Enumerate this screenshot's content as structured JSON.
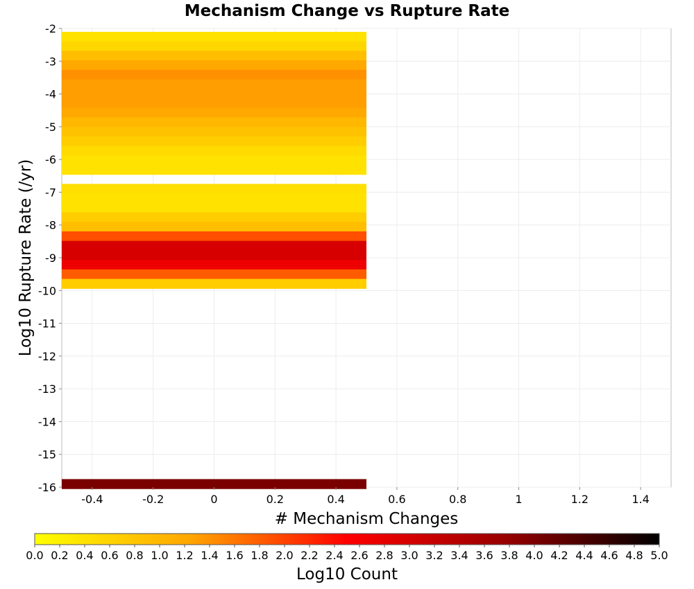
{
  "chart_data": {
    "type": "heatmap",
    "title": "Mechanism Change vs Rupture Rate",
    "xlabel": "# Mechanism Changes",
    "ylabel": "Log10 Rupture Rate (/yr)",
    "colorbar_label": "Log10 Count",
    "xlim": [
      -0.5,
      1.5
    ],
    "ylim": [
      -16,
      -2
    ],
    "x_ticks": [
      -0.4,
      -0.2,
      0,
      0.2,
      0.4,
      0.6,
      0.8,
      1,
      1.2,
      1.4
    ],
    "x_tick_labels": [
      "-0.4",
      "-0.2",
      "0",
      "0.2",
      "0.4",
      "0.6",
      "0.8",
      "1",
      "1.2",
      "1.4"
    ],
    "y_ticks": [
      -2,
      -3,
      -4,
      -5,
      -6,
      -7,
      -8,
      -9,
      -10,
      -11,
      -12,
      -13,
      -14,
      -15,
      -16
    ],
    "y_tick_labels": [
      "-2",
      "-3",
      "-4",
      "-5",
      "-6",
      "-7",
      "-8",
      "-9",
      "-10",
      "-11",
      "-12",
      "-13",
      "-14",
      "-15",
      "-16"
    ],
    "colorbar_range": [
      0,
      5
    ],
    "colorbar_tick_labels": [
      "0.0",
      "0.2",
      "0.4",
      "0.6",
      "0.8",
      "1.0",
      "1.2",
      "1.4",
      "1.6",
      "1.8",
      "2.0",
      "2.2",
      "2.4",
      "2.6",
      "2.8",
      "3.0",
      "3.2",
      "3.4",
      "3.6",
      "3.8",
      "4.0",
      "4.2",
      "4.4",
      "4.6",
      "4.8",
      "5.0"
    ],
    "colormap": [
      "#ffff00",
      "#ffa500",
      "#ff0000",
      "#990000",
      "#000000"
    ],
    "grid": true,
    "cell_width": 1,
    "cell_height": 0.29,
    "cells": [
      {
        "x": 0,
        "y": -2.25,
        "value": 0.4
      },
      {
        "x": 0,
        "y": -2.54,
        "value": 0.55
      },
      {
        "x": 0,
        "y": -2.83,
        "value": 0.9
      },
      {
        "x": 0,
        "y": -3.12,
        "value": 1.2
      },
      {
        "x": 0,
        "y": -3.41,
        "value": 1.4
      },
      {
        "x": 0,
        "y": -3.7,
        "value": 1.3
      },
      {
        "x": 0,
        "y": -3.99,
        "value": 1.3
      },
      {
        "x": 0,
        "y": -4.28,
        "value": 1.3
      },
      {
        "x": 0,
        "y": -4.57,
        "value": 1.2
      },
      {
        "x": 0,
        "y": -4.86,
        "value": 1.0
      },
      {
        "x": 0,
        "y": -5.15,
        "value": 0.85
      },
      {
        "x": 0,
        "y": -5.44,
        "value": 0.7
      },
      {
        "x": 0,
        "y": -5.73,
        "value": 0.5
      },
      {
        "x": 0,
        "y": -6.02,
        "value": 0.4
      },
      {
        "x": 0,
        "y": -6.31,
        "value": 0.4
      },
      {
        "x": 0,
        "y": -6.89,
        "value": 0.45
      },
      {
        "x": 0,
        "y": -7.18,
        "value": 0.4
      },
      {
        "x": 0,
        "y": -7.47,
        "value": 0.4
      },
      {
        "x": 0,
        "y": -7.76,
        "value": 0.7
      },
      {
        "x": 0,
        "y": -8.05,
        "value": 0.9
      },
      {
        "x": 0,
        "y": -8.34,
        "value": 1.9
      },
      {
        "x": 0,
        "y": -8.63,
        "value": 3.0
      },
      {
        "x": 0,
        "y": -8.92,
        "value": 3.0
      },
      {
        "x": 0,
        "y": -9.21,
        "value": 2.7
      },
      {
        "x": 0,
        "y": -9.5,
        "value": 1.8
      },
      {
        "x": 0,
        "y": -9.79,
        "value": 0.7
      },
      {
        "x": 0,
        "y": -15.9,
        "value": 4.0
      }
    ]
  }
}
